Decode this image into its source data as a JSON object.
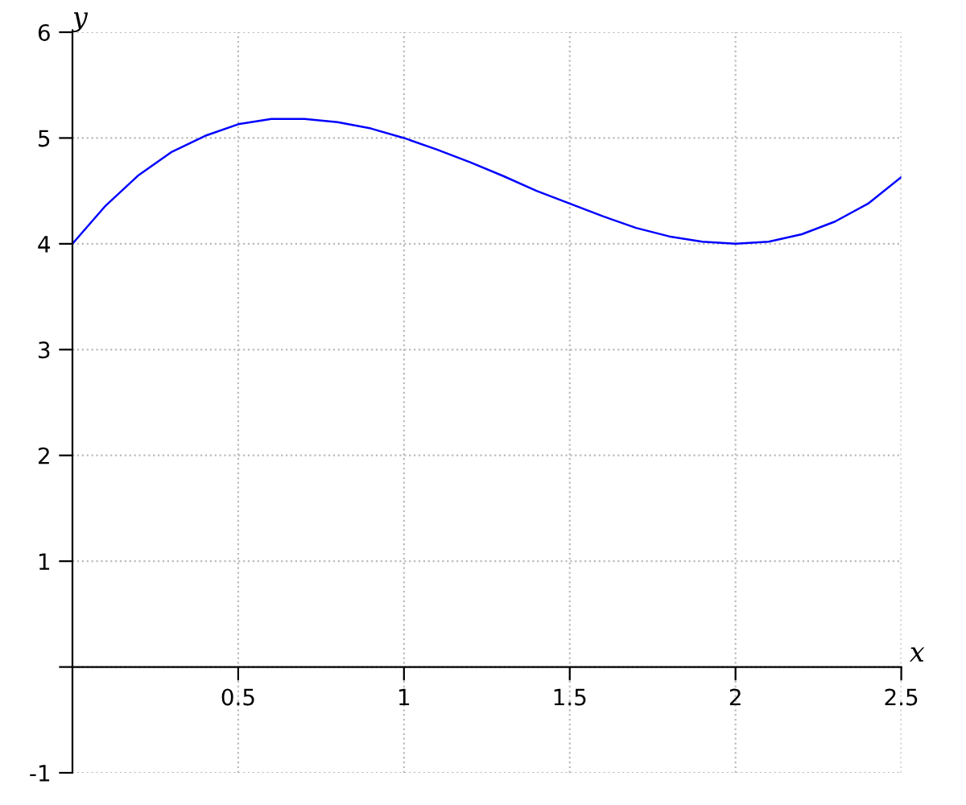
{
  "chart_data": {
    "type": "line",
    "xlabel": "x",
    "ylabel": "y",
    "x": [
      0,
      0.1,
      0.2,
      0.3,
      0.4,
      0.5,
      0.6,
      0.7,
      0.8,
      0.9,
      1.0,
      1.1,
      1.2,
      1.3,
      1.4,
      1.5,
      1.6,
      1.7,
      1.8,
      1.9,
      2.0,
      2.1,
      2.2,
      2.3,
      2.4,
      2.5
    ],
    "series": [
      {
        "color": "#0000ff",
        "values": [
          4.0,
          4.36,
          4.65,
          4.87,
          5.02,
          5.13,
          5.18,
          5.18,
          5.15,
          5.09,
          5.0,
          4.89,
          4.77,
          4.64,
          4.5,
          4.38,
          4.26,
          4.15,
          4.07,
          4.02,
          4.0,
          4.02,
          4.09,
          4.21,
          4.38,
          4.63
        ]
      }
    ],
    "xlim": [
      0,
      2.5
    ],
    "ylim": [
      -1,
      6
    ],
    "xticks": [
      0.5,
      1,
      1.5,
      2,
      2.5
    ],
    "yticks": [
      -1,
      {
        "value": 0,
        "label": null
      },
      1,
      2,
      3,
      4,
      5,
      6
    ],
    "grid": true,
    "line_style": "solid",
    "marker": "none"
  }
}
